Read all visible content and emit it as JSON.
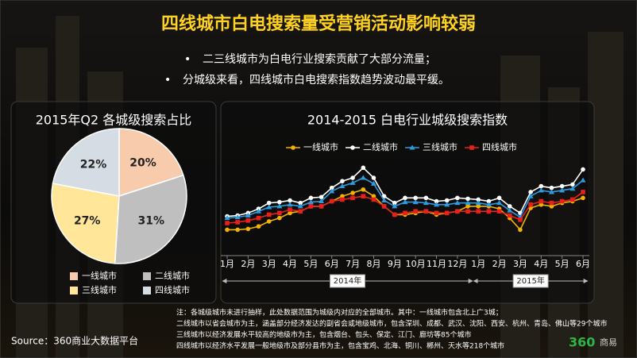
{
  "header": {
    "title": "四线城市白电搜索量受营销活动影响较弱",
    "bullets": [
      "二三线城市为白电行业搜索贡献了大部分流量；",
      "分城级来看，四线城市白电搜索指数趋势波动最平缓。"
    ]
  },
  "chart_data": [
    {
      "type": "pie",
      "title": "2015年Q2 各城级搜索占比",
      "categories": [
        "一线城市",
        "二线城市",
        "三线城市",
        "四线城市"
      ],
      "values": [
        20,
        31,
        27,
        22
      ],
      "value_labels": [
        "20%",
        "31%",
        "27%",
        "22%"
      ],
      "colors": [
        "#f8cbad",
        "#bfbfbf",
        "#ffe699",
        "#d6dce4"
      ]
    },
    {
      "type": "line",
      "title": "2014-2015 白电行业城级搜索指数",
      "categories": [
        "1月",
        null,
        "2月",
        null,
        "3月",
        null,
        "4月",
        null,
        "5月",
        null,
        "6月",
        null,
        "7月",
        null,
        "8月",
        null,
        "9月",
        null,
        "10月",
        null,
        "11月",
        null,
        "12月",
        null,
        "1月",
        null,
        "2月",
        null,
        "3月",
        null,
        "4月",
        null,
        "5月",
        null,
        "6月"
      ],
      "x_groups": [
        "2014年",
        "2015年"
      ],
      "ylim": [
        30,
        120
      ],
      "legend": "top",
      "series": [
        {
          "name": "一线城市",
          "color": "#f2b200",
          "marker": "circle",
          "values": [
            40,
            40,
            41,
            44,
            50,
            54,
            60,
            62,
            68,
            68,
            74,
            80,
            84,
            88,
            80,
            68,
            58,
            58,
            60,
            62,
            58,
            60,
            62,
            68,
            68,
            68,
            65,
            54,
            40,
            66,
            70,
            68,
            72,
            74,
            78
          ]
        },
        {
          "name": "二线城市",
          "color": "#ffffff",
          "marker": "circle",
          "values": [
            56,
            57,
            60,
            65,
            72,
            73,
            75,
            72,
            78,
            79,
            90,
            98,
            102,
            114,
            102,
            80,
            72,
            78,
            78,
            78,
            74,
            75,
            78,
            77,
            76,
            74,
            78,
            68,
            60,
            85,
            92,
            90,
            92,
            94,
            112
          ]
        },
        {
          "name": "三线城市",
          "color": "#2e9be0",
          "marker": "triangle",
          "values": [
            54,
            55,
            57,
            62,
            67,
            68,
            70,
            68,
            73,
            74,
            86,
            92,
            96,
            102,
            95,
            75,
            68,
            73,
            73,
            72,
            70,
            70,
            72,
            72,
            72,
            70,
            72,
            63,
            55,
            80,
            87,
            85,
            87,
            89,
            99
          ]
        },
        {
          "name": "四线城市",
          "color": "#e8201c",
          "marker": "square",
          "values": [
            48,
            49,
            51,
            54,
            58,
            60,
            64,
            62,
            68,
            68,
            74,
            76,
            78,
            80,
            76,
            68,
            58,
            60,
            62,
            62,
            60,
            60,
            62,
            62,
            62,
            62,
            62,
            57,
            52,
            70,
            74,
            72,
            74,
            76,
            85
          ]
        }
      ]
    }
  ],
  "notes": [
    "注：各城级城市未进行抽样，此处数据范围为城级内对应的全部城市。其中：一线城市包含北上广3城；",
    "二线城市以省会城市为主，涵盖部分经济发达的副省会或地级城市，包含深圳、成都、武汉、沈阳、西安、杭州、青岛、佛山等29个城市",
    "三线城市以经济发展水平较高的地级市为主，包含烟台、包头、保定、江门、廊坊等85个城市",
    "四线城市以经济水平发展一般地级市及部分县市为主，包含宝鸡、北海、铜川、郴州、天水等218个城市"
  ],
  "source": "Source：360商业大数据平台",
  "logo": {
    "mark": "360",
    "text": "商易"
  }
}
